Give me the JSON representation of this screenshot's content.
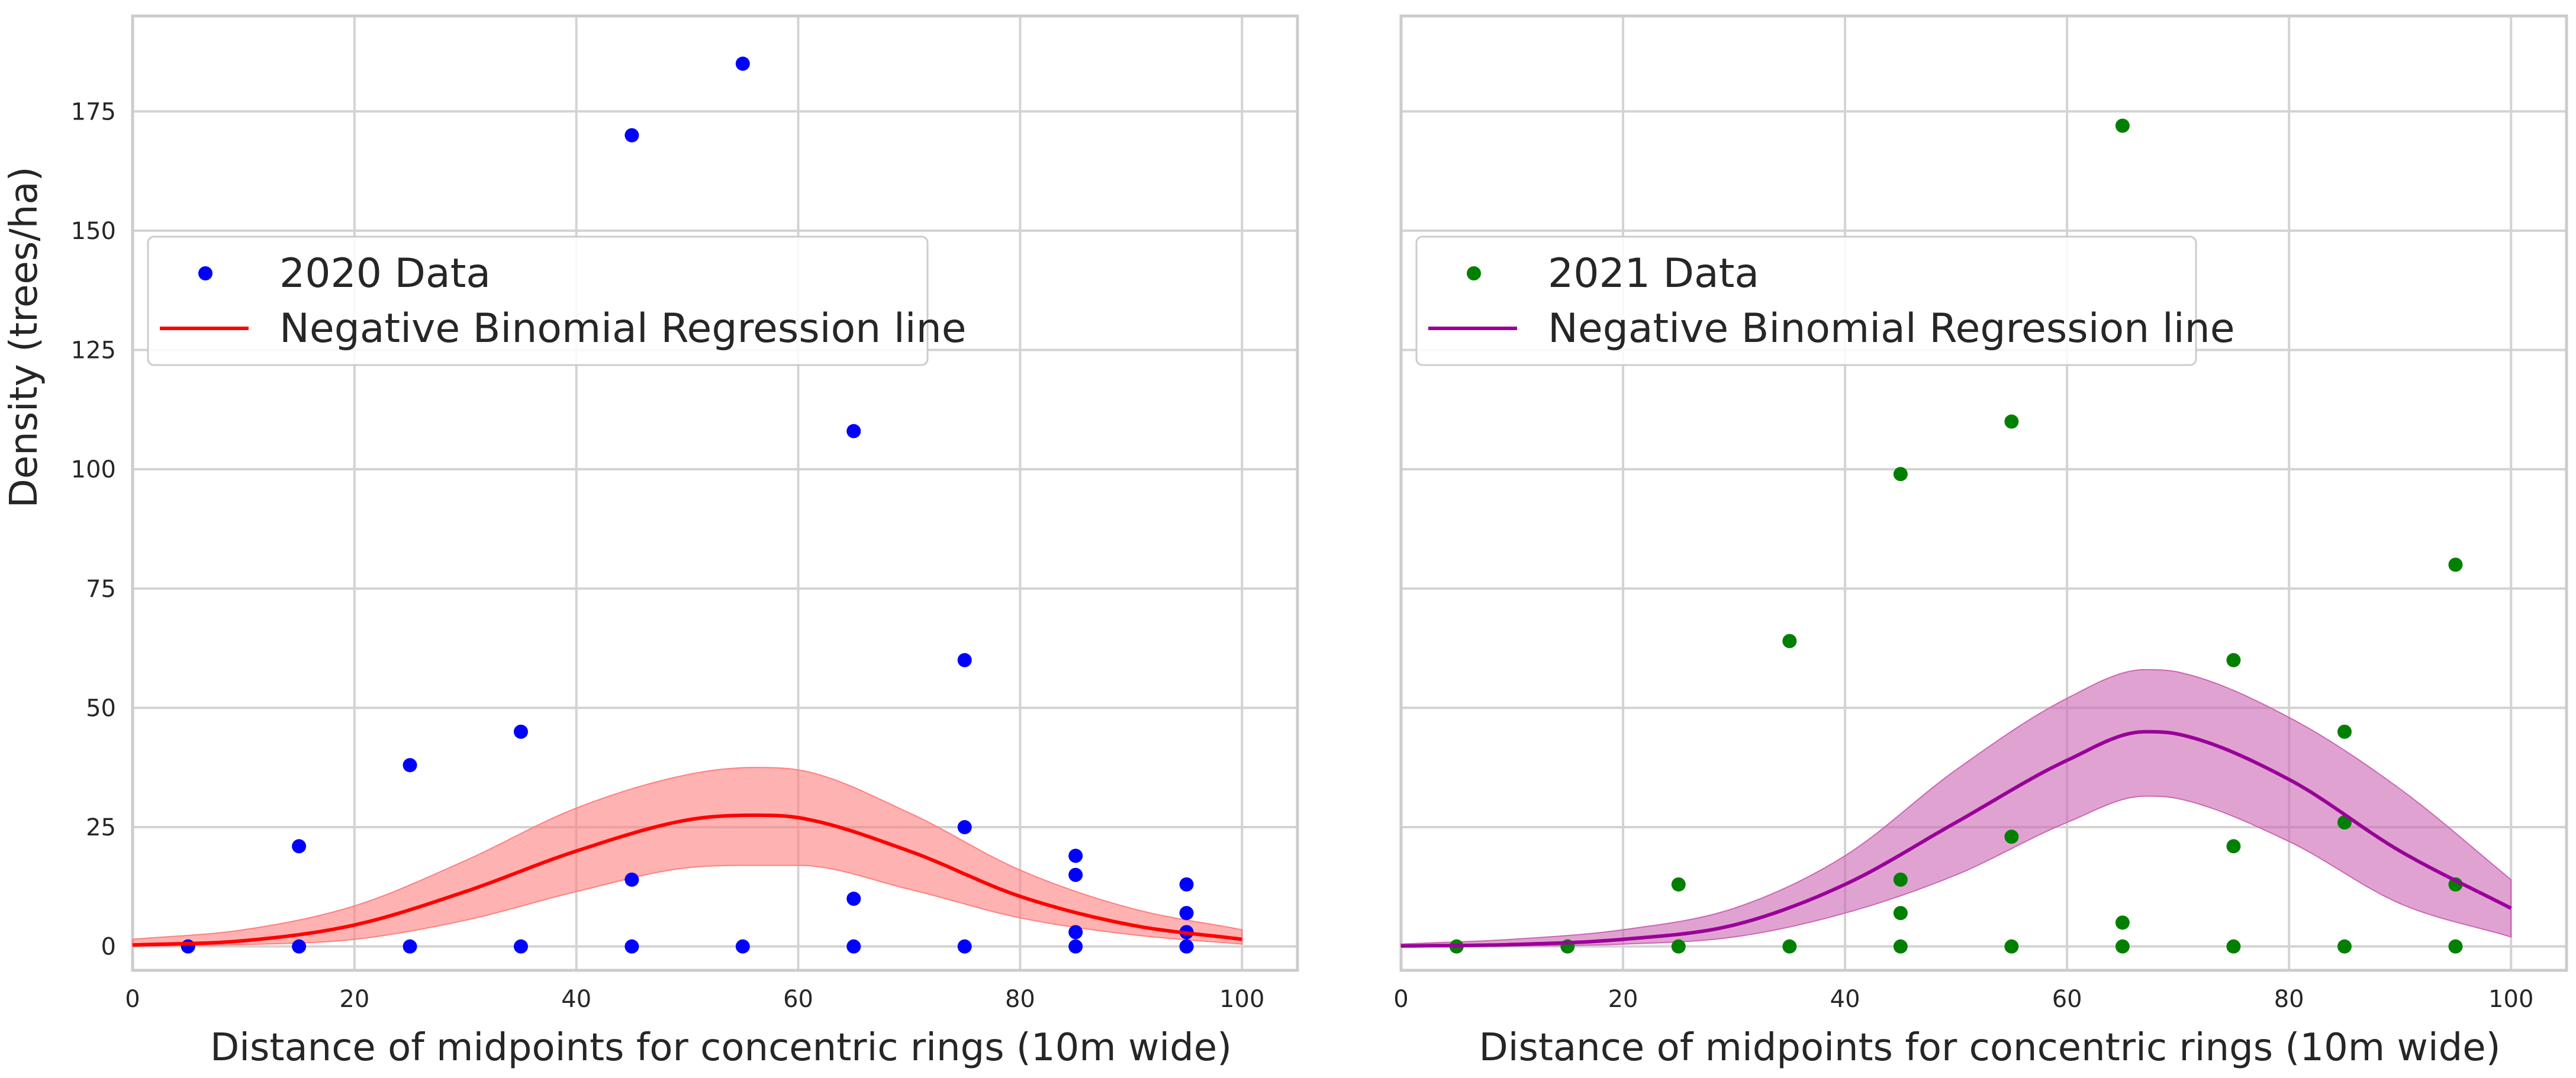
{
  "chart_data": {
    "type": "scatter",
    "shared_ylabel": "Density (trees/ha)",
    "panels": [
      {
        "id": "panel-2020",
        "xlabel": "Distance of midpoints for concentric rings (10m wide)",
        "ylabel": "Density (trees/ha)",
        "xlim": [
          0,
          105
        ],
        "ylim": [
          -5,
          195
        ],
        "xticks": [
          0,
          20,
          40,
          60,
          80,
          100
        ],
        "yticks": [
          0,
          25,
          50,
          75,
          100,
          125,
          150,
          175
        ],
        "grid": true,
        "legend_position": "upper-left",
        "scatter": {
          "name": "2020 Data",
          "color": "#0000ff",
          "x": [
            5,
            15,
            15,
            25,
            25,
            35,
            35,
            45,
            45,
            45,
            55,
            55,
            65,
            65,
            65,
            75,
            75,
            75,
            85,
            85,
            85,
            85,
            95,
            95,
            95,
            95,
            95
          ],
          "y": [
            0,
            0,
            21,
            0,
            38,
            0,
            45,
            0,
            14,
            170,
            0,
            185,
            0,
            10,
            108,
            0,
            25,
            60,
            0,
            3,
            15,
            19,
            0,
            3,
            7,
            13,
            0
          ]
        },
        "regression": {
          "name": "Negative Binomial Regression line",
          "color": "#ff0000",
          "band_color": "#ff7f7f",
          "x": [
            0,
            10,
            20,
            30,
            40,
            50,
            56,
            60,
            70,
            80,
            90,
            100
          ],
          "y": [
            0.3,
            1.2,
            4.5,
            11.5,
            20,
            26.5,
            27.5,
            27,
            20,
            10.5,
            4.5,
            1.5
          ],
          "lower": [
            0.05,
            0.4,
            1.5,
            5.5,
            11.5,
            16.5,
            17,
            17,
            12,
            6,
            2.5,
            0.5
          ],
          "upper": [
            1.5,
            3.5,
            8.5,
            18,
            29,
            36,
            37.5,
            37,
            28,
            16,
            8,
            3.5
          ]
        }
      },
      {
        "id": "panel-2021",
        "xlabel": "Distance of midpoints for concentric rings (10m wide)",
        "ylabel": "",
        "xlim": [
          0,
          105
        ],
        "ylim": [
          -5,
          195
        ],
        "xticks": [
          0,
          20,
          40,
          60,
          80,
          100
        ],
        "yticks": [
          0,
          25,
          50,
          75,
          100,
          125,
          150,
          175
        ],
        "grid": true,
        "legend_position": "upper-left",
        "scatter": {
          "name": "2021 Data",
          "color": "#008000",
          "x": [
            5,
            15,
            25,
            25,
            35,
            35,
            45,
            45,
            45,
            45,
            55,
            55,
            55,
            65,
            65,
            65,
            75,
            75,
            75,
            85,
            85,
            85,
            95,
            95,
            95
          ],
          "y": [
            0,
            0,
            0,
            13,
            0,
            64,
            0,
            7,
            14,
            99,
            0,
            23,
            110,
            0,
            5,
            172,
            0,
            21,
            60,
            0,
            26,
            45,
            0,
            13,
            80
          ]
        },
        "regression": {
          "name": "Negative Binomial Regression line",
          "color": "#990099",
          "band_color": "#cc66b3",
          "x": [
            0,
            10,
            20,
            30,
            40,
            50,
            60,
            67,
            70,
            80,
            90,
            100
          ],
          "y": [
            0.1,
            0.4,
            1.5,
            4.5,
            13,
            26,
            39,
            45,
            44.5,
            35,
            20,
            8
          ],
          "lower": [
            0.02,
            0.1,
            0.5,
            2,
            7,
            15,
            26,
            31.5,
            31,
            22,
            9,
            2
          ],
          "upper": [
            0.5,
            1.5,
            3.5,
            8,
            19,
            37,
            52,
            58,
            57.5,
            48,
            33,
            14
          ]
        }
      }
    ]
  }
}
